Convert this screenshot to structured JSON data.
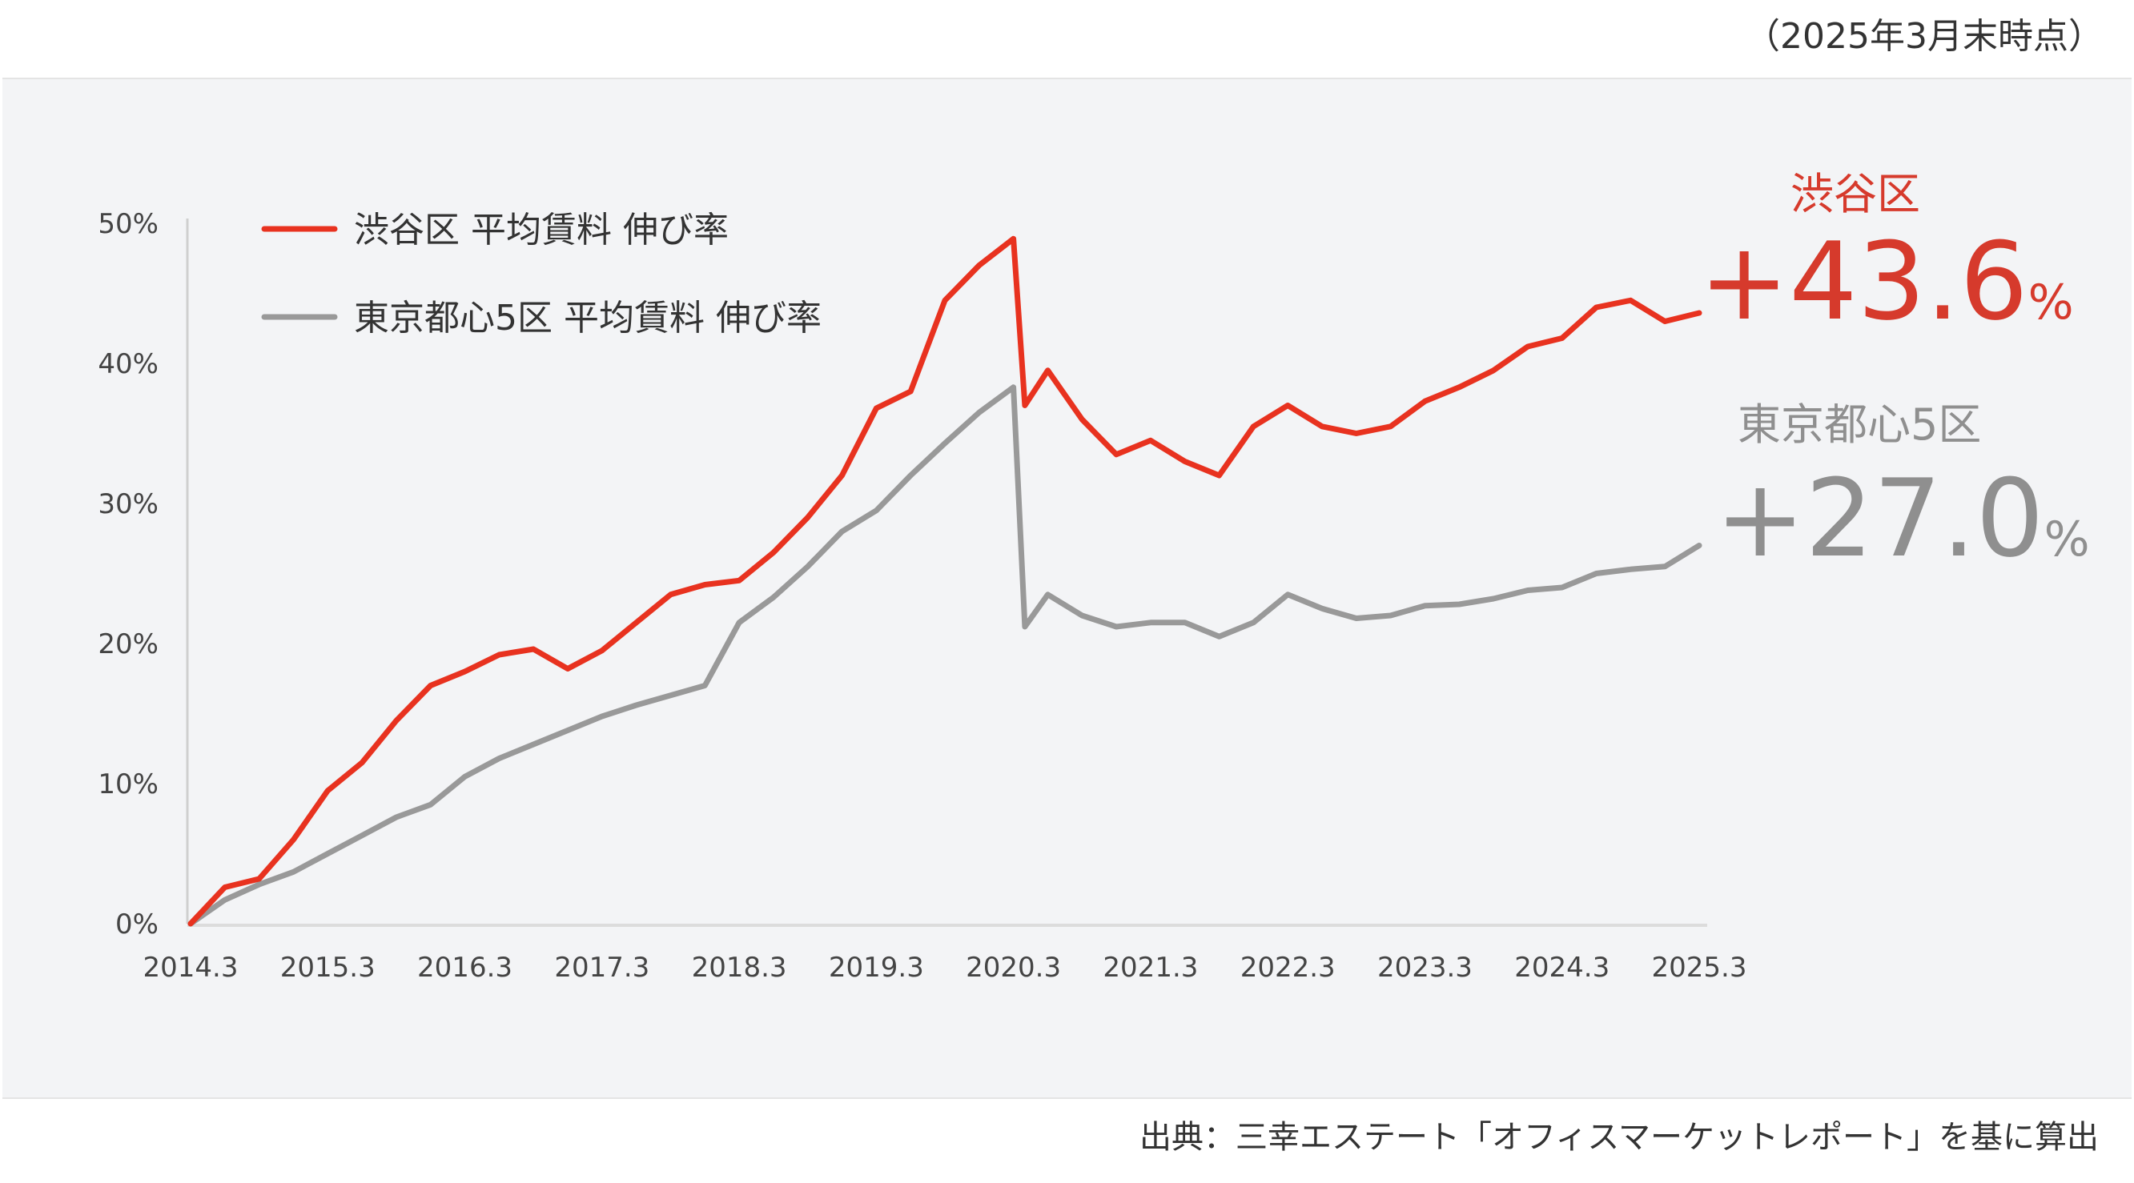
{
  "header": {
    "as_of": "（2025年3月末時点）"
  },
  "footer": {
    "source": "出典：三幸エステート「オフィスマーケットレポート」を基に算出"
  },
  "colors": {
    "shibuya": "#e8321f",
    "central5": "#999999",
    "shibuya_label": "#d63a2c",
    "central5_label": "#8f8f8f",
    "background": "#f3f4f6"
  },
  "annotations": {
    "shibuya": {
      "name": "渋谷区",
      "value": "+43.6",
      "unit": "%"
    },
    "central5": {
      "name": "東京都心5区",
      "value": "+27.0",
      "unit": "%"
    }
  },
  "chart_data": {
    "type": "line",
    "title": "",
    "xlabel": "",
    "ylabel": "",
    "x_unit": "months since 2014.3",
    "x_ticks": [
      0,
      12,
      24,
      36,
      48,
      60,
      72,
      84,
      96,
      108,
      120,
      132
    ],
    "x_tick_labels": [
      "2014.3",
      "2015.3",
      "2016.3",
      "2017.3",
      "2018.3",
      "2019.3",
      "2020.3",
      "2021.3",
      "2022.3",
      "2023.3",
      "2024.3",
      "2025.3"
    ],
    "y_ticks": [
      0,
      10,
      20,
      30,
      40,
      50
    ],
    "y_tick_labels": [
      "0%",
      "10%",
      "20%",
      "30%",
      "40%",
      "50%"
    ],
    "xlim": [
      0,
      132
    ],
    "ylim": [
      0,
      50
    ],
    "legend": "top-left",
    "series": [
      {
        "name": "渋谷区 平均賃料 伸び率",
        "x": [
          0,
          3,
          6,
          9,
          12,
          15,
          18,
          21,
          24,
          27,
          30,
          33,
          36,
          39,
          42,
          45,
          48,
          51,
          54,
          57,
          60,
          63,
          66,
          69,
          72,
          73,
          75,
          78,
          81,
          84,
          87,
          90,
          93,
          96,
          99,
          102,
          105,
          108,
          111,
          114,
          117,
          120,
          123,
          126,
          129,
          132
        ],
        "values": [
          0,
          2.6,
          3.2,
          6.0,
          9.5,
          11.5,
          14.5,
          17.0,
          18.0,
          19.2,
          19.6,
          18.2,
          19.5,
          21.5,
          23.5,
          24.2,
          24.5,
          26.5,
          29.0,
          32.0,
          36.8,
          38.0,
          44.5,
          47.0,
          48.9,
          37.0,
          39.5,
          36.0,
          33.5,
          34.5,
          33.0,
          32.0,
          35.5,
          37.0,
          35.5,
          35.0,
          35.5,
          37.3,
          38.3,
          39.5,
          41.2,
          41.8,
          44.0,
          44.5,
          43.0,
          43.6
        ]
      },
      {
        "name": "東京都心5区 平均賃料 伸び率",
        "x": [
          0,
          3,
          6,
          9,
          12,
          15,
          18,
          21,
          24,
          27,
          30,
          33,
          36,
          39,
          42,
          45,
          48,
          51,
          54,
          57,
          60,
          63,
          66,
          69,
          72,
          73,
          75,
          78,
          81,
          84,
          87,
          90,
          93,
          96,
          99,
          102,
          105,
          108,
          111,
          114,
          117,
          120,
          123,
          126,
          129,
          132
        ],
        "values": [
          0,
          1.7,
          2.8,
          3.7,
          5.0,
          6.3,
          7.6,
          8.5,
          10.5,
          11.8,
          12.8,
          13.8,
          14.8,
          15.6,
          16.3,
          17.0,
          21.5,
          23.3,
          25.5,
          28.0,
          29.5,
          32.0,
          34.3,
          36.5,
          38.3,
          21.2,
          23.5,
          22.0,
          21.2,
          21.5,
          21.5,
          20.5,
          21.5,
          23.5,
          22.5,
          21.8,
          22.0,
          22.7,
          22.8,
          23.2,
          23.8,
          24.0,
          25.0,
          25.3,
          25.5,
          27.0
        ]
      }
    ]
  }
}
